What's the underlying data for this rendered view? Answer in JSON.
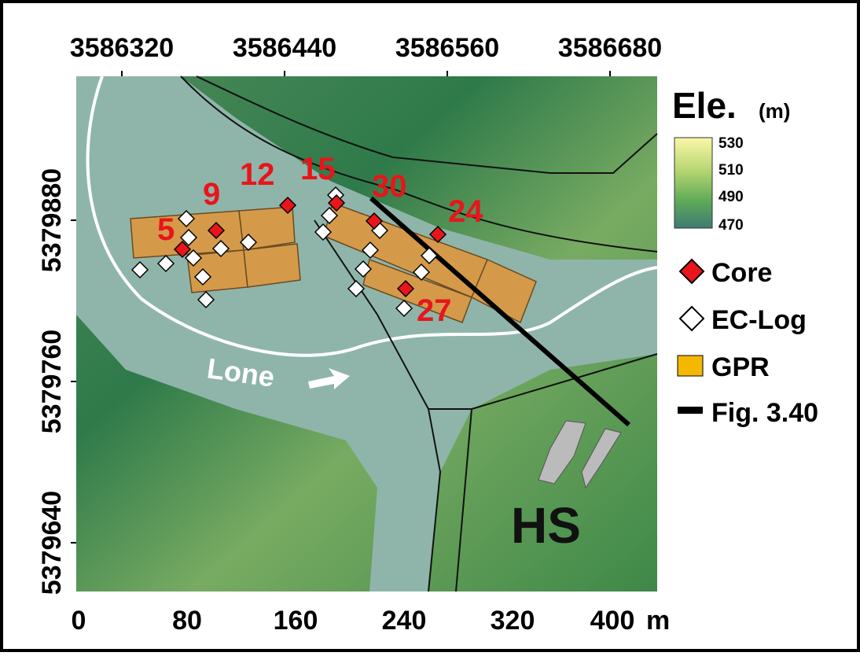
{
  "axes": {
    "top": [
      "3586320",
      "3586440",
      "3586560",
      "3586680"
    ],
    "left": [
      "5379880",
      "5379760",
      "5379640"
    ],
    "bottom": [
      "0",
      "80",
      "160",
      "240",
      "320",
      "400"
    ],
    "bottom_unit": "m"
  },
  "map_labels": {
    "samples": [
      "5",
      "9",
      "12",
      "15",
      "30",
      "24",
      "27"
    ],
    "river": "Lone",
    "site": "HS"
  },
  "legend": {
    "title": "Ele.",
    "unit": "(m)",
    "scale": [
      "530",
      "510",
      "490",
      "470"
    ],
    "items": [
      "Core",
      "EC-Log",
      "GPR",
      "Fig. 3.40"
    ]
  }
}
